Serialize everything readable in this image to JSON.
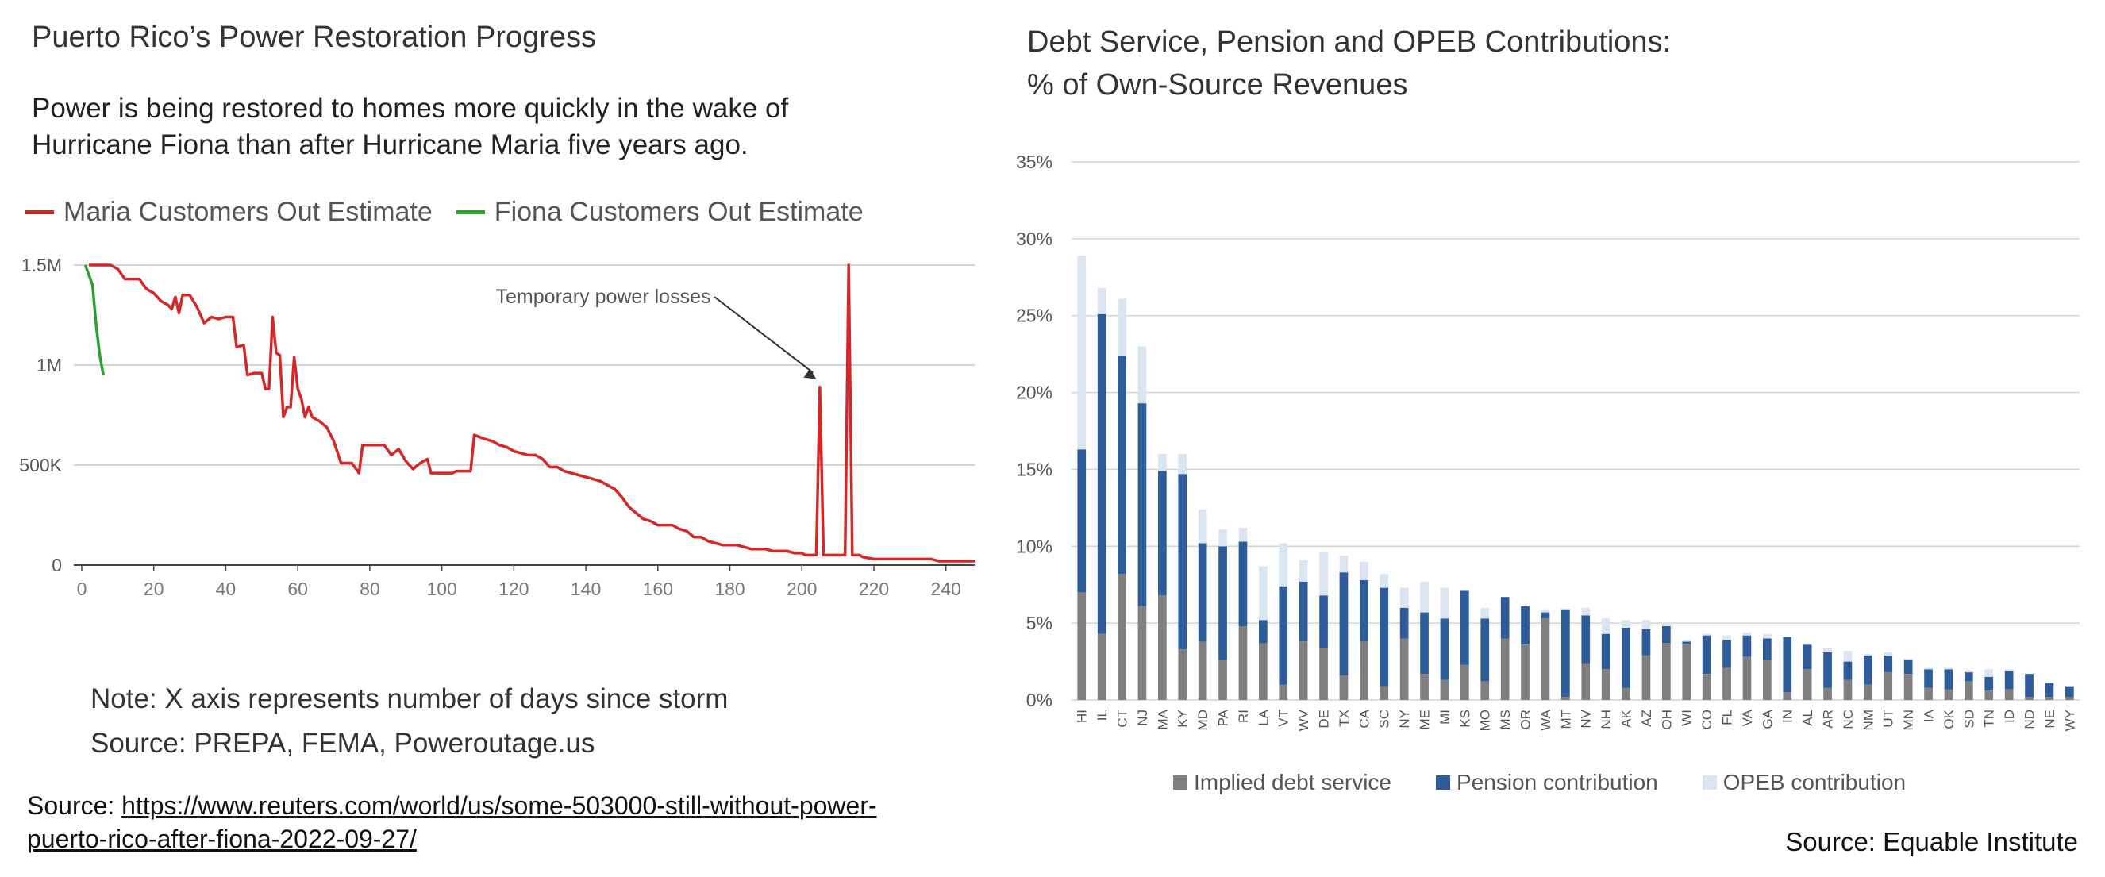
{
  "left_panel": {
    "title": "Puerto Rico’s Power Restoration Progress",
    "subtitle": "Power is being restored to homes more quickly in the wake of Hurricane Fiona than after Hurricane Maria five years ago.",
    "note": "Note: X axis represents number of days since storm",
    "source_inner": "Source: PREPA, FEMA, Poweroutage.us",
    "source_prefix": "Source: ",
    "source_link": "https://www.reuters.com/world/us/some-503000-still-without-power-puerto-rico-after-fiona-2022-09-27/"
  },
  "right_panel": {
    "title_line1": "Debt Service, Pension and OPEB Contributions:",
    "title_line2": "% of Own-Source Revenues",
    "source": "Source: Equable Institute"
  },
  "chart_data": [
    {
      "type": "line",
      "title": "",
      "xlabel": "",
      "ylabel": "",
      "xlim": [
        0,
        248
      ],
      "ylim": [
        0,
        1500000
      ],
      "x_ticks": [
        0,
        20,
        40,
        60,
        80,
        100,
        120,
        140,
        160,
        180,
        200,
        220,
        240
      ],
      "y_ticks": [
        0,
        500000,
        1000000,
        1500000
      ],
      "y_tick_labels": [
        "0",
        "500K",
        "1M",
        "1.5M"
      ],
      "grid": "horizontal",
      "legend": "top-left",
      "annotation": {
        "text": "Temporary power losses",
        "x": 204,
        "y": 930000
      },
      "series": [
        {
          "name": "Maria Customers Out Estimate",
          "color": "#d62728",
          "points": [
            [
              2,
              1500000
            ],
            [
              4,
              1500000
            ],
            [
              8,
              1500000
            ],
            [
              10,
              1480000
            ],
            [
              12,
              1430000
            ],
            [
              16,
              1430000
            ],
            [
              18,
              1380000
            ],
            [
              20,
              1360000
            ],
            [
              22,
              1320000
            ],
            [
              24,
              1300000
            ],
            [
              25,
              1280000
            ],
            [
              26,
              1340000
            ],
            [
              27,
              1260000
            ],
            [
              28,
              1350000
            ],
            [
              30,
              1350000
            ],
            [
              32,
              1290000
            ],
            [
              34,
              1210000
            ],
            [
              36,
              1240000
            ],
            [
              38,
              1230000
            ],
            [
              40,
              1240000
            ],
            [
              42,
              1240000
            ],
            [
              43,
              1090000
            ],
            [
              45,
              1100000
            ],
            [
              46,
              950000
            ],
            [
              48,
              960000
            ],
            [
              50,
              960000
            ],
            [
              51,
              880000
            ],
            [
              52,
              880000
            ],
            [
              53,
              1240000
            ],
            [
              54,
              1060000
            ],
            [
              55,
              1050000
            ],
            [
              56,
              740000
            ],
            [
              57,
              790000
            ],
            [
              58,
              790000
            ],
            [
              59,
              1040000
            ],
            [
              60,
              880000
            ],
            [
              61,
              830000
            ],
            [
              62,
              740000
            ],
            [
              63,
              790000
            ],
            [
              64,
              740000
            ],
            [
              66,
              720000
            ],
            [
              68,
              690000
            ],
            [
              70,
              620000
            ],
            [
              72,
              510000
            ],
            [
              75,
              510000
            ],
            [
              77,
              460000
            ],
            [
              78,
              600000
            ],
            [
              81,
              600000
            ],
            [
              84,
              600000
            ],
            [
              86,
              550000
            ],
            [
              88,
              580000
            ],
            [
              90,
              520000
            ],
            [
              92,
              480000
            ],
            [
              94,
              510000
            ],
            [
              96,
              530000
            ],
            [
              97,
              460000
            ],
            [
              100,
              460000
            ],
            [
              103,
              460000
            ],
            [
              104,
              470000
            ],
            [
              108,
              470000
            ],
            [
              109,
              650000
            ],
            [
              112,
              630000
            ],
            [
              114,
              620000
            ],
            [
              116,
              600000
            ],
            [
              118,
              590000
            ],
            [
              120,
              570000
            ],
            [
              122,
              560000
            ],
            [
              124,
              550000
            ],
            [
              126,
              550000
            ],
            [
              128,
              530000
            ],
            [
              130,
              490000
            ],
            [
              132,
              490000
            ],
            [
              134,
              470000
            ],
            [
              136,
              460000
            ],
            [
              138,
              450000
            ],
            [
              140,
              440000
            ],
            [
              142,
              430000
            ],
            [
              144,
              420000
            ],
            [
              146,
              400000
            ],
            [
              148,
              380000
            ],
            [
              150,
              340000
            ],
            [
              152,
              290000
            ],
            [
              154,
              260000
            ],
            [
              156,
              230000
            ],
            [
              158,
              220000
            ],
            [
              160,
              200000
            ],
            [
              162,
              200000
            ],
            [
              164,
              200000
            ],
            [
              166,
              180000
            ],
            [
              168,
              170000
            ],
            [
              170,
              140000
            ],
            [
              172,
              140000
            ],
            [
              174,
              120000
            ],
            [
              176,
              110000
            ],
            [
              178,
              100000
            ],
            [
              180,
              100000
            ],
            [
              182,
              100000
            ],
            [
              184,
              90000
            ],
            [
              186,
              80000
            ],
            [
              188,
              80000
            ],
            [
              190,
              80000
            ],
            [
              192,
              70000
            ],
            [
              194,
              70000
            ],
            [
              196,
              70000
            ],
            [
              198,
              60000
            ],
            [
              200,
              60000
            ],
            [
              201,
              50000
            ],
            [
              203,
              50000
            ],
            [
              204,
              50000
            ],
            [
              205,
              890000
            ],
            [
              206,
              50000
            ],
            [
              207,
              50000
            ],
            [
              210,
              50000
            ],
            [
              212,
              50000
            ],
            [
              213,
              1500000
            ],
            [
              214,
              50000
            ],
            [
              215,
              50000
            ],
            [
              216,
              50000
            ],
            [
              217,
              40000
            ],
            [
              220,
              30000
            ],
            [
              224,
              30000
            ],
            [
              228,
              30000
            ],
            [
              232,
              30000
            ],
            [
              236,
              30000
            ],
            [
              238,
              20000
            ],
            [
              242,
              20000
            ],
            [
              246,
              20000
            ],
            [
              248,
              20000
            ]
          ]
        },
        {
          "name": "Fiona Customers Out Estimate",
          "color": "#2ca02c",
          "points": [
            [
              1,
              1500000
            ],
            [
              2,
              1450000
            ],
            [
              3,
              1400000
            ],
            [
              4,
              1200000
            ],
            [
              5,
              1050000
            ],
            [
              6,
              950000
            ]
          ]
        }
      ]
    },
    {
      "type": "bar",
      "stacked": true,
      "title": "Debt Service, Pension and OPEB Contributions: % of Own-Source Revenues",
      "xlabel": "",
      "ylabel": "",
      "ylim": [
        0,
        35
      ],
      "y_ticks": [
        0,
        5,
        10,
        15,
        20,
        25,
        30,
        35
      ],
      "y_tick_suffix": "%",
      "grid": "horizontal",
      "legend": "bottom",
      "categories": [
        "HI",
        "IL",
        "CT",
        "NJ",
        "MA",
        "KY",
        "MD",
        "PA",
        "RI",
        "LA",
        "VT",
        "WV",
        "DE",
        "TX",
        "CA",
        "SC",
        "NY",
        "ME",
        "MI",
        "KS",
        "MO",
        "MS",
        "OR",
        "WA",
        "MT",
        "NV",
        "NH",
        "AK",
        "AZ",
        "OH",
        "WI",
        "CO",
        "FL",
        "VA",
        "GA",
        "IN",
        "AL",
        "AR",
        "NC",
        "NM",
        "UT",
        "MN",
        "IA",
        "OK",
        "SD",
        "TN",
        "ID",
        "ND",
        "NE",
        "WY"
      ],
      "series": [
        {
          "name": "Implied debt service",
          "color": "#7f7f7f",
          "values": [
            7.0,
            4.3,
            8.2,
            6.1,
            6.8,
            3.3,
            3.8,
            2.6,
            4.8,
            3.7,
            1.0,
            3.8,
            3.4,
            1.6,
            3.8,
            0.9,
            4.0,
            1.7,
            1.3,
            2.3,
            1.2,
            4.0,
            3.6,
            5.3,
            0.2,
            2.4,
            2.0,
            0.8,
            2.9,
            3.7,
            3.6,
            1.7,
            2.1,
            2.8,
            2.6,
            0.5,
            2.0,
            0.8,
            1.3,
            1.0,
            1.8,
            1.7,
            0.8,
            0.7,
            1.2,
            0.6,
            0.7,
            0.2,
            0.2,
            0.2
          ]
        },
        {
          "name": "Pension contribution",
          "color": "#2e5c9a",
          "values": [
            9.3,
            20.8,
            14.2,
            13.2,
            8.1,
            11.4,
            6.4,
            7.4,
            5.5,
            1.5,
            6.4,
            3.9,
            3.4,
            6.7,
            4.0,
            6.4,
            2.0,
            4.0,
            4.0,
            4.8,
            4.1,
            2.7,
            2.5,
            0.4,
            5.7,
            3.1,
            2.3,
            3.9,
            1.7,
            1.1,
            0.2,
            2.5,
            1.8,
            1.4,
            1.4,
            3.6,
            1.6,
            2.3,
            1.2,
            1.9,
            1.1,
            0.9,
            1.2,
            1.3,
            0.6,
            0.9,
            1.2,
            1.5,
            0.9,
            0.7
          ]
        },
        {
          "name": "OPEB contribution",
          "color": "#dbe4f1",
          "values": [
            12.6,
            1.7,
            3.7,
            3.7,
            1.1,
            1.3,
            2.2,
            1.1,
            0.9,
            3.5,
            2.8,
            1.4,
            2.8,
            1.1,
            1.2,
            0.9,
            1.3,
            2.0,
            2.0,
            0.0,
            0.7,
            0.0,
            0.0,
            0.2,
            0.0,
            0.5,
            1.0,
            0.5,
            0.6,
            0.2,
            0.1,
            0.1,
            0.3,
            0.2,
            0.3,
            0.0,
            0.1,
            0.3,
            0.7,
            0.1,
            0.2,
            0.1,
            0.1,
            0.1,
            0.1,
            0.5,
            0.1,
            0.0,
            0.0,
            0.0
          ]
        }
      ]
    }
  ]
}
